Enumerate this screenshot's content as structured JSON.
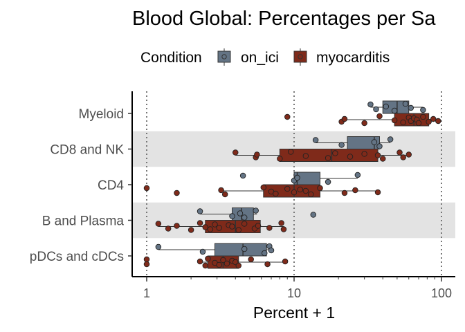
{
  "chart_data": {
    "type": "boxplot",
    "title": "Blood Global: Percentages per Sa",
    "xlabel": "Percent + 1",
    "ylabel": "",
    "x_scale": "log10",
    "xlim": [
      0.9,
      125
    ],
    "x_ticks": [
      1,
      10,
      100
    ],
    "x_tick_labels": [
      "1",
      "10",
      "100"
    ],
    "reference_lines": [
      1,
      10,
      100
    ],
    "legend": {
      "title": "Condition",
      "placement": "top",
      "entries": [
        "on_ici",
        "myocarditis"
      ]
    },
    "colors": {
      "on_ici": "#647485",
      "myocarditis": "#7f2a1a",
      "band": "#e3e3e3",
      "axis": "#000000",
      "whisker": "#333333"
    },
    "categories": [
      "Myeloid",
      "CD8 and NK",
      "CD4",
      "B and Plasma",
      "pDCs and cDCs"
    ],
    "series": [
      {
        "name": "on_ici",
        "boxes": [
          {
            "category": "Myeloid",
            "whisker_low": 33,
            "q1": 40,
            "median": 50,
            "q3": 60,
            "whisker_high": 75
          },
          {
            "category": "CD8 and NK",
            "whisker_low": 14,
            "q1": 23,
            "median": 35,
            "q3": 38,
            "whisker_high": 45
          },
          {
            "category": "CD4",
            "whisker_low": 10,
            "q1": 10,
            "median": 10.5,
            "q3": 15,
            "whisker_high": 27
          },
          {
            "category": "B and Plasma",
            "whisker_low": 2.3,
            "q1": 3.8,
            "median": 4.4,
            "q3": 5.3,
            "whisker_high": 5.6
          },
          {
            "category": "pDCs and cDCs",
            "whisker_low": 1.2,
            "q1": 2.9,
            "median": 4.5,
            "q3": 6.5,
            "whisker_high": 7
          }
        ],
        "points": [
          {
            "category": "Myeloid",
            "values": [
              33,
              36,
              42,
              48,
              57,
              62,
              75
            ]
          },
          {
            "category": "CD8 and NK",
            "values": [
              14,
              21,
              35,
              38,
              45
            ]
          },
          {
            "category": "CD4",
            "values": [
              4.5,
              10,
              10.5,
              17,
              27
            ]
          },
          {
            "category": "B and Plasma",
            "values": [
              2.3,
              3.8,
              4.3,
              4.6,
              5.5,
              13.5
            ]
          },
          {
            "category": "pDCs and cDCs",
            "values": [
              1.2,
              2.4,
              4.6,
              6.3,
              6.8,
              7
            ]
          }
        ]
      },
      {
        "name": "myocarditis",
        "boxes": [
          {
            "category": "Myeloid",
            "whisker_low": 21,
            "q1": 48,
            "median": 65,
            "q3": 82,
            "whisker_high": 95
          },
          {
            "category": "CD8 and NK",
            "whisker_low": 4,
            "q1": 8,
            "median": 18,
            "q3": 37,
            "whisker_high": 60
          },
          {
            "category": "CD4",
            "whisker_low": 3.2,
            "q1": 6.2,
            "median": 10,
            "q3": 15,
            "whisker_high": 37
          },
          {
            "category": "B and Plasma",
            "whisker_low": 1.2,
            "q1": 2.5,
            "median": 4,
            "q3": 5.9,
            "whisker_high": 8.5
          },
          {
            "category": "pDCs and cDCs",
            "whisker_low": 2.3,
            "q1": 2.6,
            "median": 3.3,
            "q3": 4.2,
            "whisker_high": 8.7
          }
        ],
        "points": [
          {
            "category": "Myeloid",
            "values": [
              9,
              21,
              22,
              30,
              38,
              48,
              55,
              60,
              62,
              65,
              68,
              70,
              75,
              82,
              88,
              95
            ]
          },
          {
            "category": "CD8 and NK",
            "values": [
              4,
              5.5,
              5.6,
              8,
              9.5,
              12,
              17,
              19,
              24,
              30,
              37,
              40,
              52,
              55,
              60
            ]
          },
          {
            "category": "CD4",
            "values": [
              1,
              1.6,
              3.2,
              3.4,
              6.2,
              7,
              7.5,
              9,
              10,
              11,
              12,
              13,
              15,
              22,
              26,
              37
            ]
          },
          {
            "category": "B and Plasma",
            "values": [
              1.2,
              1.4,
              1.6,
              2,
              2.3,
              2.5,
              2.7,
              2.9,
              3.1,
              3.6,
              3.8,
              4.2,
              4.6,
              5.4,
              5.7,
              6.8,
              8.2,
              8.5
            ]
          },
          {
            "category": "pDCs and cDCs",
            "values": [
              1,
              1,
              2.3,
              2.5,
              2.6,
              2.9,
              3.1,
              3.3,
              3.5,
              3.8,
              4,
              4.2,
              5.1,
              6.6,
              8.7
            ]
          }
        ]
      }
    ]
  }
}
